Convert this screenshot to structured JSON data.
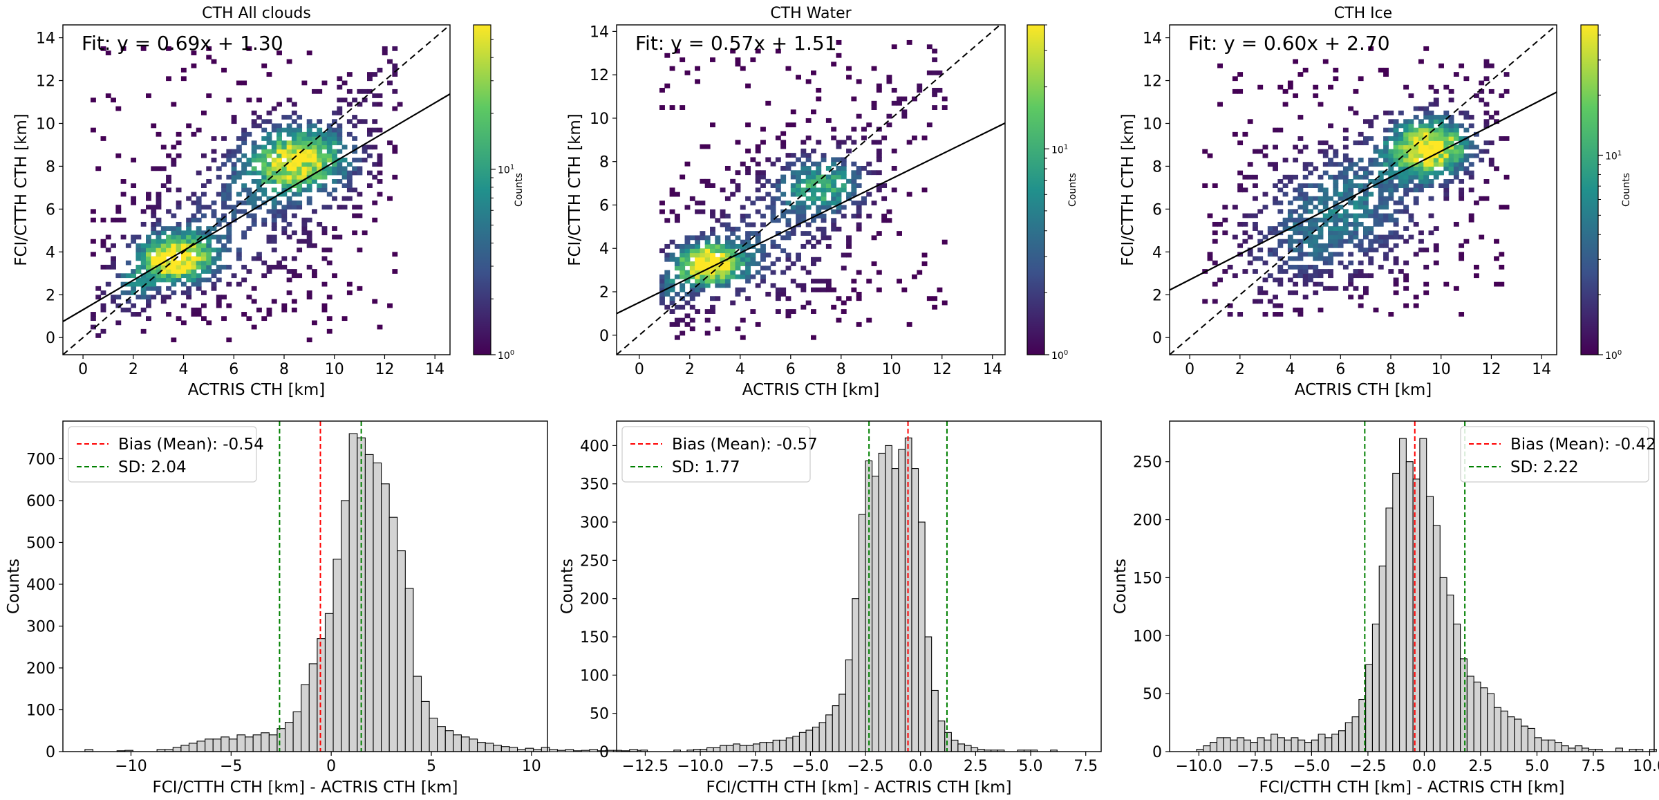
{
  "figure": {
    "background": "#ffffff"
  },
  "colors": {
    "axis": "#000000",
    "bias_line": "#ff0000",
    "sd_line": "#008000",
    "hist_fill": "#d3d3d3",
    "hist_edge": "#000000",
    "fit_line": "#000000",
    "identity_line": "#000000",
    "colormap": [
      "#440154",
      "#3b528b",
      "#21918c",
      "#5ec962",
      "#fde725"
    ]
  },
  "chart_data": [
    {
      "type": "heatmap",
      "panel": "scatter-all",
      "title": "CTH All clouds",
      "xlabel": "ACTRIS CTH [km]",
      "ylabel": "FCI/CTTH CTH [km]",
      "xlim": [
        -0.8,
        14.6
      ],
      "ylim": [
        -0.8,
        14.6
      ],
      "xticks": [
        "0",
        "2",
        "4",
        "6",
        "8",
        "10",
        "12",
        "14"
      ],
      "yticks": [
        "0",
        "2",
        "4",
        "6",
        "8",
        "10",
        "12",
        "14"
      ],
      "fit_text": "Fit: y = 0.69x + 1.30",
      "fit": {
        "slope": 0.69,
        "intercept": 1.3
      },
      "identity_line": true,
      "density_model": {
        "components": [
          {
            "cx": 3.5,
            "cy": 3.6,
            "sx": 1.1,
            "sy": 0.8,
            "w": 1.0
          },
          {
            "cx": 8.5,
            "cy": 8.2,
            "sx": 1.6,
            "sy": 1.2,
            "w": 0.85
          },
          {
            "cx": 6.0,
            "cy": 5.3,
            "sx": 2.6,
            "sy": 2.3,
            "w": 0.25
          },
          {
            "cx": 1.8,
            "cy": 2.2,
            "sx": 0.6,
            "sy": 0.6,
            "w": 0.35
          }
        ],
        "diag_weight": 0.45,
        "x_range": [
          0.3,
          12.6
        ],
        "y_range": [
          -0.2,
          13.5
        ],
        "seed": 11
      },
      "colorbar": {
        "label": "Counts",
        "max_count": 60,
        "ticks": [
          {
            "value": 1,
            "base": "10",
            "exp": "0"
          },
          {
            "value": 10,
            "base": "10",
            "exp": "1"
          }
        ]
      }
    },
    {
      "type": "heatmap",
      "panel": "scatter-water",
      "title": "CTH Water",
      "xlabel": "ACTRIS CTH [km]",
      "ylabel": "FCI/CTTH CTH [km]",
      "xlim": [
        -0.9,
        14.5
      ],
      "ylim": [
        -0.9,
        14.3
      ],
      "xticks": [
        "0",
        "2",
        "4",
        "6",
        "8",
        "10",
        "12",
        "14"
      ],
      "yticks": [
        "0",
        "2",
        "4",
        "6",
        "8",
        "10",
        "12",
        "14"
      ],
      "fit_text": "Fit: y = 0.57x + 1.51",
      "fit": {
        "slope": 0.57,
        "intercept": 1.51
      },
      "identity_line": true,
      "density_model": {
        "components": [
          {
            "cx": 2.6,
            "cy": 3.2,
            "sx": 1.0,
            "sy": 0.7,
            "w": 1.0
          },
          {
            "cx": 7.2,
            "cy": 6.8,
            "sx": 1.3,
            "sy": 1.0,
            "w": 0.6
          },
          {
            "cx": 4.8,
            "cy": 4.0,
            "sx": 2.2,
            "sy": 2.0,
            "w": 0.25
          },
          {
            "cx": 1.2,
            "cy": 2.0,
            "sx": 0.5,
            "sy": 0.6,
            "w": 0.3
          }
        ],
        "diag_weight": 0.35,
        "x_range": [
          0.8,
          12.0
        ],
        "y_range": [
          -0.2,
          13.5
        ],
        "seed": 23
      },
      "colorbar": {
        "label": "Counts",
        "max_count": 40,
        "ticks": [
          {
            "value": 1,
            "base": "10",
            "exp": "0"
          },
          {
            "value": 10,
            "base": "10",
            "exp": "1"
          }
        ]
      }
    },
    {
      "type": "heatmap",
      "panel": "scatter-ice",
      "title": "CTH Ice",
      "xlabel": "ACTRIS CTH [km]",
      "ylabel": "FCI/CTTH CTH [km]",
      "xlim": [
        -0.8,
        14.6
      ],
      "ylim": [
        -0.8,
        14.6
      ],
      "xticks": [
        "0",
        "2",
        "4",
        "6",
        "8",
        "10",
        "12",
        "14"
      ],
      "yticks": [
        "0",
        "2",
        "4",
        "6",
        "8",
        "10",
        "12",
        "14"
      ],
      "fit_text": "Fit: y = 0.60x + 2.70",
      "fit": {
        "slope": 0.6,
        "intercept": 2.7
      },
      "identity_line": true,
      "density_model": {
        "components": [
          {
            "cx": 9.5,
            "cy": 8.8,
            "sx": 1.2,
            "sy": 1.0,
            "w": 1.0
          },
          {
            "cx": 6.5,
            "cy": 6.2,
            "sx": 2.3,
            "sy": 2.2,
            "w": 0.4
          },
          {
            "cx": 4.0,
            "cy": 4.3,
            "sx": 1.8,
            "sy": 1.8,
            "w": 0.2
          }
        ],
        "diag_weight": 0.3,
        "x_range": [
          0.5,
          12.6
        ],
        "y_range": [
          1.0,
          13.5
        ],
        "seed": 37
      },
      "colorbar": {
        "label": "Counts",
        "max_count": 45,
        "ticks": [
          {
            "value": 1,
            "base": "10",
            "exp": "0"
          },
          {
            "value": 10,
            "base": "10",
            "exp": "1"
          }
        ]
      }
    },
    {
      "type": "bar",
      "panel": "hist-all",
      "xlabel": "FCI/CTTH CTH [km] - ACTRIS CTH [km]",
      "ylabel": "Counts",
      "xlim": [
        -13.4,
        10.8
      ],
      "ylim": [
        0,
        790
      ],
      "xticks": [
        {
          "value": -10,
          "label": "−10"
        },
        {
          "value": -5,
          "label": "−5"
        },
        {
          "value": 0,
          "label": "0"
        },
        {
          "value": 5,
          "label": "5"
        },
        {
          "value": 10,
          "label": "10"
        }
      ],
      "yticks": [
        0,
        100,
        200,
        300,
        400,
        500,
        600,
        700
      ],
      "bin_start": -12.3,
      "bin_width": 0.4,
      "values": [
        5,
        0,
        0,
        0,
        2,
        3,
        0,
        0,
        0,
        5,
        5,
        10,
        15,
        20,
        25,
        30,
        30,
        35,
        30,
        40,
        35,
        40,
        45,
        40,
        55,
        70,
        95,
        160,
        210,
        270,
        330,
        460,
        600,
        760,
        750,
        710,
        690,
        640,
        560,
        480,
        390,
        180,
        120,
        80,
        60,
        50,
        40,
        35,
        30,
        22,
        20,
        15,
        12,
        10,
        5,
        8,
        5,
        10,
        5,
        3,
        5,
        2,
        3,
        5,
        2,
        3,
        3,
        2,
        5,
        3
      ],
      "bias_text": "Bias (Mean): -0.54",
      "bias": -0.54,
      "sd_text": "SD: 2.04",
      "sd": 2.04,
      "legend_loc": "upper left"
    },
    {
      "type": "bar",
      "panel": "hist-water",
      "xlabel": "FCI/CTTH CTH [km] - ACTRIS CTH [km]",
      "ylabel": "Counts",
      "xlim": [
        -13.8,
        8.2
      ],
      "ylim": [
        0,
        432
      ],
      "xticks": [
        {
          "value": -12.5,
          "label": "−12.5"
        },
        {
          "value": -10,
          "label": "−10.0"
        },
        {
          "value": -7.5,
          "label": "−7.5"
        },
        {
          "value": -5,
          "label": "−5.0"
        },
        {
          "value": -2.5,
          "label": "−2.5"
        },
        {
          "value": 0,
          "label": "0.0"
        },
        {
          "value": 2.5,
          "label": "2.5"
        },
        {
          "value": 5,
          "label": "5.0"
        },
        {
          "value": 7.5,
          "label": "7.5"
        }
      ],
      "yticks": [
        0,
        50,
        100,
        150,
        200,
        250,
        300,
        350,
        400
      ],
      "bin_start": -12.7,
      "bin_width": 0.3,
      "values": [
        2,
        0,
        0,
        0,
        0,
        2,
        0,
        2,
        3,
        3,
        5,
        5,
        8,
        8,
        10,
        8,
        8,
        10,
        12,
        12,
        15,
        15,
        18,
        20,
        25,
        28,
        32,
        38,
        48,
        60,
        75,
        120,
        200,
        310,
        380,
        360,
        390,
        400,
        370,
        395,
        410,
        370,
        300,
        150,
        80,
        40,
        25,
        15,
        10,
        8,
        5,
        3,
        2,
        2,
        2,
        0,
        0,
        2,
        2,
        2,
        0,
        0,
        2
      ],
      "bias_text": "Bias (Mean): -0.57",
      "bias": -0.57,
      "sd_text": "SD: 1.77",
      "sd": 1.77,
      "legend_loc": "upper left"
    },
    {
      "type": "bar",
      "panel": "hist-ice",
      "xlabel": "FCI/CTTH CTH [km] - ACTRIS CTH [km]",
      "ylabel": "Counts",
      "xlim": [
        -11.3,
        10.2
      ],
      "ylim": [
        0,
        285
      ],
      "xticks": [
        {
          "value": -10,
          "label": "−10.0"
        },
        {
          "value": -7.5,
          "label": "−7.5"
        },
        {
          "value": -5,
          "label": "−5.0"
        },
        {
          "value": -2.5,
          "label": "−2.5"
        },
        {
          "value": 0,
          "label": "0.0"
        },
        {
          "value": 2.5,
          "label": "2.5"
        },
        {
          "value": 5,
          "label": "5.0"
        },
        {
          "value": 7.5,
          "label": "7.5"
        },
        {
          "value": 10,
          "label": "10.0"
        }
      ],
      "yticks": [
        0,
        50,
        100,
        150,
        200,
        250
      ],
      "bin_start": -10.1,
      "bin_width": 0.3,
      "values": [
        2,
        5,
        8,
        12,
        12,
        10,
        12,
        10,
        8,
        12,
        10,
        15,
        12,
        10,
        12,
        10,
        8,
        10,
        15,
        12,
        15,
        18,
        25,
        30,
        45,
        75,
        110,
        160,
        210,
        240,
        270,
        250,
        235,
        270,
        220,
        195,
        150,
        135,
        110,
        80,
        65,
        60,
        55,
        50,
        38,
        35,
        30,
        28,
        22,
        20,
        12,
        10,
        10,
        8,
        5,
        3,
        5,
        3,
        2,
        2,
        0,
        0,
        3,
        0,
        2,
        2,
        0,
        2
      ],
      "bias_text": "Bias (Mean): -0.42",
      "bias": -0.42,
      "sd_text": "SD: 2.22",
      "sd": 2.22,
      "legend_loc": "upper right"
    }
  ]
}
